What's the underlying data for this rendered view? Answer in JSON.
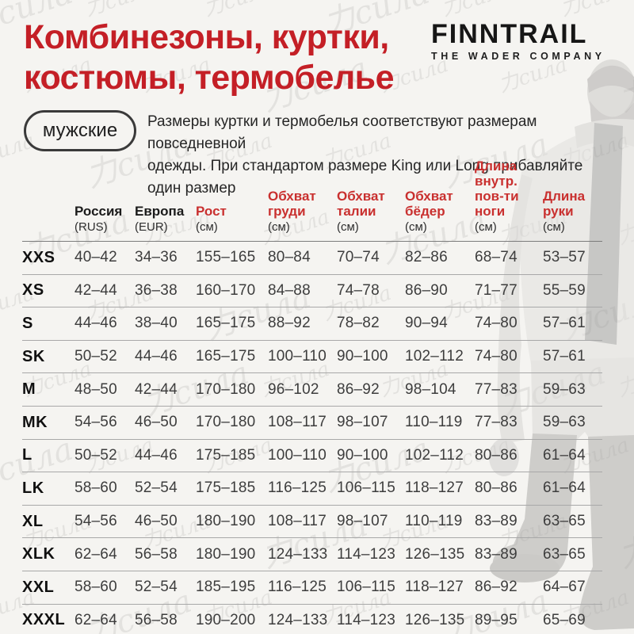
{
  "theme": {
    "background": "#f5f4f1",
    "title_red": "#c41f26",
    "table_header_red": "#c9302f",
    "row_line_gray": "#a8a8a8"
  },
  "header": {
    "title_line1": "Комбинезоны, куртки,",
    "title_line2": "костюмы, термобелье",
    "logo": {
      "name": "FINNTRAIL",
      "tagline": "THE WADER COMPANY"
    }
  },
  "intro": {
    "gender_pill": "мужские",
    "description_line1": "Размеры куртки и термобелья соответствуют размерам повседневной",
    "description_line2": "одежды. При стандартом размере King или Long прибавляйте один размер"
  },
  "watermark": {
    "text": "力сила"
  },
  "table": {
    "columns": [
      {
        "key": "size",
        "label": "",
        "unit": "",
        "accent": false
      },
      {
        "key": "russia",
        "label": "Россия",
        "unit": "(RUS)",
        "accent": false
      },
      {
        "key": "europe",
        "label": "Европа",
        "unit": "(EUR)",
        "accent": false
      },
      {
        "key": "height",
        "label": "Рост",
        "unit": "(см)",
        "accent": true
      },
      {
        "key": "chest",
        "label": "Обхват груди",
        "unit": "(см)",
        "accent": true
      },
      {
        "key": "waist",
        "label": "Обхват талии",
        "unit": "(см)",
        "accent": true
      },
      {
        "key": "hips",
        "label": "Обхват бёдер",
        "unit": "(см)",
        "accent": true
      },
      {
        "key": "inseam",
        "label": "Длина внутр. пов-ти ноги",
        "unit": "(см)",
        "accent": true
      },
      {
        "key": "arm",
        "label": "Длина руки",
        "unit": "(см)",
        "accent": true
      }
    ],
    "rows": [
      {
        "size": "XXS",
        "values": [
          "40–42",
          "34–36",
          "155–165",
          "80–84",
          "70–74",
          "82–86",
          "68–74",
          "53–57"
        ]
      },
      {
        "size": "XS",
        "values": [
          "42–44",
          "36–38",
          "160–170",
          "84–88",
          "74–78",
          "86–90",
          "71–77",
          "55–59"
        ]
      },
      {
        "size": "S",
        "values": [
          "44–46",
          "38–40",
          "165–175",
          "88–92",
          "78–82",
          "90–94",
          "74–80",
          "57–61"
        ]
      },
      {
        "size": "SK",
        "values": [
          "50–52",
          "44–46",
          "165–175",
          "100–110",
          "90–100",
          "102–112",
          "74–80",
          "57–61"
        ]
      },
      {
        "size": "M",
        "values": [
          "48–50",
          "42–44",
          "170–180",
          "96–102",
          "86–92",
          "98–104",
          "77–83",
          "59–63"
        ]
      },
      {
        "size": "MK",
        "values": [
          "54–56",
          "46–50",
          "170–180",
          "108–117",
          "98–107",
          "110–119",
          "77–83",
          "59–63"
        ]
      },
      {
        "size": "L",
        "values": [
          "50–52",
          "44–46",
          "175–185",
          "100–110",
          "90–100",
          "102–112",
          "80–86",
          "61–64"
        ]
      },
      {
        "size": "LK",
        "values": [
          "58–60",
          "52–54",
          "175–185",
          "116–125",
          "106–115",
          "118–127",
          "80–86",
          "61–64"
        ]
      },
      {
        "size": "XL",
        "values": [
          "54–56",
          "46–50",
          "180–190",
          "108–117",
          "98–107",
          "110–119",
          "83–89",
          "63–65"
        ]
      },
      {
        "size": "XLK",
        "values": [
          "62–64",
          "56–58",
          "180–190",
          "124–133",
          "114–123",
          "126–135",
          "83–89",
          "63–65"
        ]
      },
      {
        "size": "XXL",
        "values": [
          "58–60",
          "52–54",
          "185–195",
          "116–125",
          "106–115",
          "118–127",
          "86–92",
          "64–67"
        ]
      },
      {
        "size": "XXXL",
        "values": [
          "62–64",
          "56–58",
          "190–200",
          "124–133",
          "114–123",
          "126–135",
          "89–95",
          "65–69"
        ]
      }
    ]
  }
}
